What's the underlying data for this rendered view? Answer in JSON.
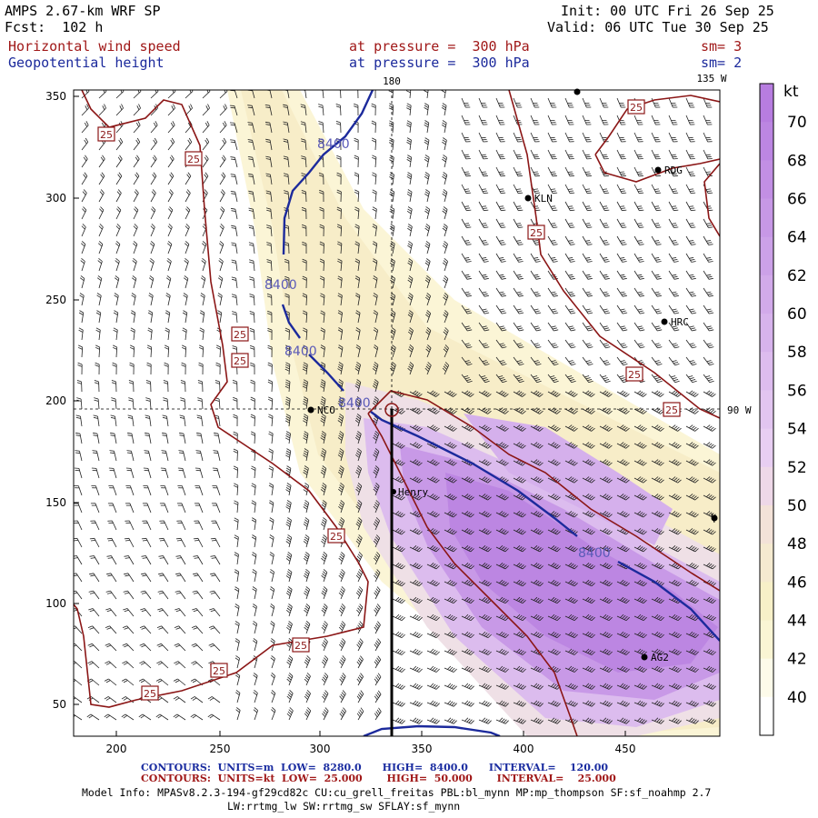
{
  "header": {
    "model": "AMPS 2.67-km WRF SP",
    "forecast": "Fcst:  102 h",
    "init": "Init: 00 UTC Fri 26 Sep 25",
    "valid": "Valid: 06 UTC Tue 30 Sep 25",
    "field1": "Horizontal wind speed",
    "field1_level": "at pressure =  300 hPa",
    "field1_sm": "sm= 3",
    "field2": "Geopotential height",
    "field2_level": "at pressure =  300 hPa",
    "field2_sm": "sm= 2"
  },
  "map": {
    "lon_labels": [
      "180",
      "135 W",
      "90 W"
    ],
    "x_ticks": [
      "200",
      "250",
      "300",
      "350",
      "400",
      "450"
    ],
    "y_ticks": [
      "350",
      "300",
      "250",
      "200",
      "150",
      "100",
      "50"
    ],
    "stations": [
      "NCO",
      "Henry",
      "KLN",
      "RDG",
      "HRC",
      "AG2"
    ],
    "height_contour_label": "8400",
    "speed_contour_label": "25",
    "colors": {
      "height": "#1c2a9c",
      "speed": "#8b1616",
      "coast": "#000000"
    }
  },
  "colorbar": {
    "unit": "kt",
    "labels": [
      "70",
      "68",
      "66",
      "64",
      "62",
      "60",
      "58",
      "56",
      "54",
      "52",
      "50",
      "48",
      "46",
      "44",
      "42",
      "40"
    ],
    "colors": [
      "#b77de0",
      "#bc86e2",
      "#c28fe4",
      "#c798e6",
      "#cca1e8",
      "#d2aaea",
      "#d7b3ec",
      "#ddbcee",
      "#e2c5f0",
      "#e8cef2",
      "#eed8e8",
      "#f3e2d8",
      "#f5ead0",
      "#f7f0c8",
      "#faf5d4",
      "#fdfbea",
      "#ffffff"
    ]
  },
  "footer": {
    "contours1": "CONTOURS:  UNITS=m  LOW=  8280.0      HIGH=  8400.0      INTERVAL=    120.00",
    "contours2": "CONTOURS:  UNITS=kt  LOW=  25.000       HIGH=  50.000       INTERVAL=    25.000",
    "info1": "Model Info: MPASv8.2.3-194-gf29cd82c CU:cu_grell_freitas PBL:bl_mynn MP:mp_thompson SF:sf_noahmp 2.7",
    "info2": "LW:rrtmg_lw SW:rrtmg_sw SFLAY:sf_mynn"
  }
}
